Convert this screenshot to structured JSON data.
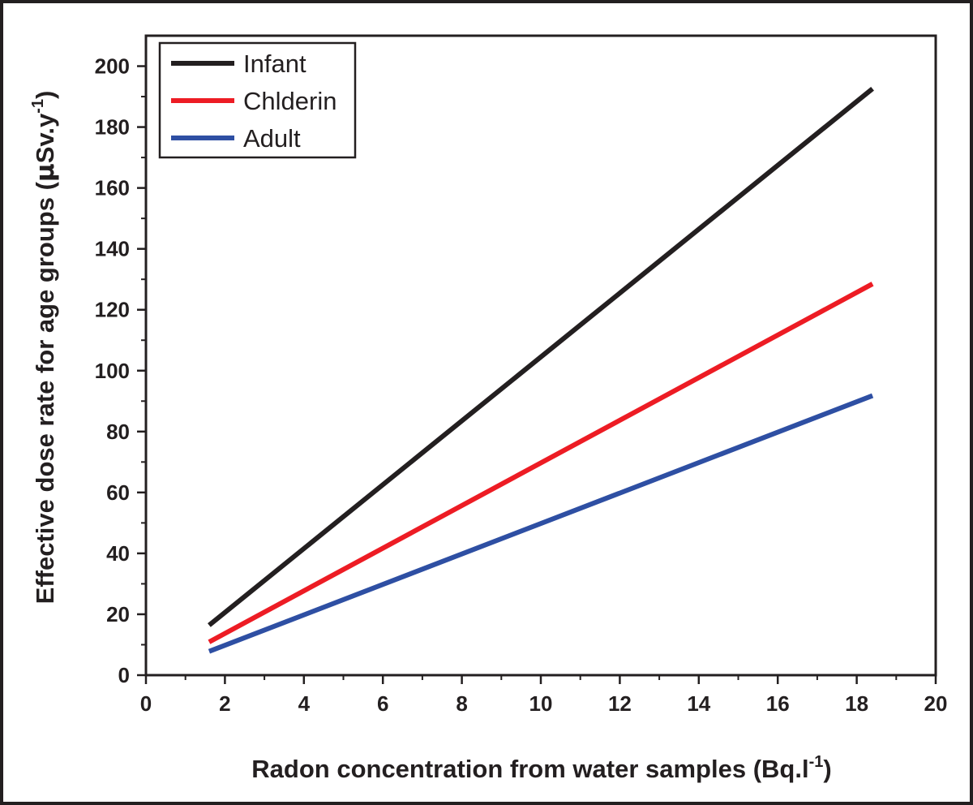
{
  "chart_data": {
    "type": "line",
    "title": "",
    "xlabel": "Radon concentration from water samples (Bq.l-1)",
    "xlabel_parts": {
      "main": "Radon concentration from water samples (Bq.l",
      "sup": "-1",
      "close": ")"
    },
    "ylabel": "Effective dose rate for age groups (μSv.y-1)",
    "ylabel_parts": {
      "main": "Effective dose rate for age groups (",
      "mu": "μ",
      "unit": "Sv.y",
      "sup": "-1",
      "close": ")"
    },
    "xlim": [
      0,
      20
    ],
    "ylim": [
      0,
      210
    ],
    "xticks": [
      0,
      2,
      4,
      6,
      8,
      10,
      12,
      14,
      16,
      18,
      20
    ],
    "yticks": [
      0,
      20,
      40,
      60,
      80,
      100,
      120,
      140,
      160,
      180,
      200
    ],
    "grid": false,
    "legend_position": "top-left",
    "series": [
      {
        "name": "Infant",
        "color": "#231f20",
        "x": [
          1.6,
          18.4
        ],
        "y": [
          16.4,
          192.6
        ]
      },
      {
        "name": "Chlderin",
        "color": "#ed1c24",
        "x": [
          1.6,
          18.4
        ],
        "y": [
          10.9,
          128.5
        ]
      },
      {
        "name": "Adult",
        "color": "#2e4fa3",
        "x": [
          1.6,
          18.4
        ],
        "y": [
          7.8,
          91.8
        ]
      }
    ]
  }
}
